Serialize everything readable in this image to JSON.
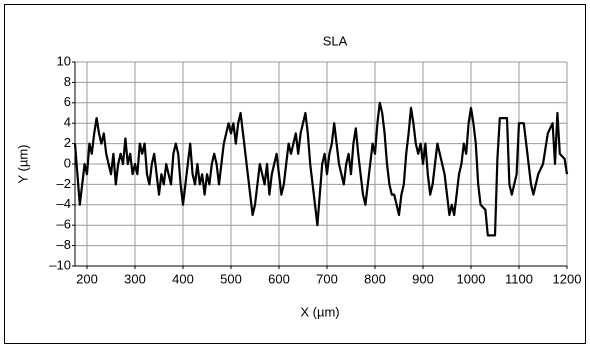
{
  "chart_data": {
    "type": "line",
    "title": "SLA",
    "x_label": "X (µm)",
    "y_label": "Y (µm)",
    "xlim": [
      175,
      1200
    ],
    "xticks": [
      200,
      300,
      400,
      500,
      600,
      700,
      800,
      900,
      1000,
      1100,
      1200
    ],
    "ylim": [
      -10,
      10
    ],
    "yticks": [
      {
        "value": -10,
        "label": "–10"
      },
      {
        "value": -8,
        "label": "–8"
      },
      {
        "value": -6,
        "label": "–6"
      },
      {
        "value": -4,
        "label": "–4"
      },
      {
        "value": -2,
        "label": "–2"
      },
      0,
      2,
      4,
      6,
      8,
      10
    ],
    "grid": true,
    "color": "#000000",
    "x": [
      175,
      180,
      185,
      190,
      195,
      200,
      205,
      210,
      215,
      220,
      225,
      230,
      235,
      240,
      245,
      250,
      255,
      260,
      265,
      270,
      275,
      280,
      285,
      290,
      295,
      300,
      305,
      310,
      315,
      320,
      325,
      330,
      335,
      340,
      345,
      350,
      355,
      360,
      365,
      370,
      375,
      380,
      385,
      390,
      395,
      400,
      405,
      410,
      415,
      420,
      425,
      430,
      435,
      440,
      445,
      450,
      455,
      460,
      465,
      470,
      475,
      480,
      485,
      490,
      495,
      500,
      505,
      510,
      515,
      520,
      525,
      530,
      535,
      540,
      545,
      550,
      555,
      560,
      565,
      570,
      575,
      580,
      585,
      590,
      595,
      600,
      605,
      610,
      615,
      620,
      625,
      630,
      635,
      640,
      645,
      650,
      655,
      660,
      665,
      670,
      675,
      680,
      685,
      690,
      695,
      700,
      705,
      710,
      715,
      720,
      725,
      730,
      735,
      740,
      745,
      750,
      755,
      760,
      765,
      770,
      775,
      780,
      785,
      790,
      795,
      800,
      805,
      810,
      815,
      820,
      825,
      830,
      835,
      840,
      845,
      850,
      855,
      860,
      865,
      870,
      875,
      880,
      885,
      890,
      895,
      900,
      905,
      910,
      915,
      920,
      925,
      930,
      935,
      940,
      945,
      950,
      955,
      960,
      965,
      970,
      975,
      980,
      985,
      990,
      995,
      1000,
      1005,
      1010,
      1015,
      1020,
      1030,
      1035,
      1050,
      1055,
      1060,
      1075,
      1080,
      1085,
      1095,
      1100,
      1110,
      1115,
      1120,
      1125,
      1130,
      1140,
      1150,
      1160,
      1170,
      1175,
      1180,
      1185,
      1195,
      1200
    ],
    "values": [
      2,
      -1,
      -4,
      -2,
      0,
      -1,
      2,
      1,
      3,
      4.5,
      3,
      2,
      3,
      1,
      0,
      -1,
      1,
      -2,
      0,
      1,
      0,
      2.5,
      0,
      1,
      -1,
      0,
      -1,
      2,
      1,
      2,
      -1,
      -2,
      0,
      1,
      -1,
      -3,
      -1,
      -2,
      0,
      -1,
      -2,
      1,
      2,
      1,
      -2,
      -4,
      -2,
      0,
      2,
      -1,
      -2,
      0,
      -2,
      -1,
      -3,
      -1,
      -2,
      0,
      1,
      0,
      -2,
      0,
      2,
      3,
      4,
      3,
      4,
      2,
      4,
      5,
      3,
      1,
      -1,
      -3,
      -5,
      -4,
      -2,
      0,
      -1,
      -2,
      0,
      -3,
      -1,
      0,
      1,
      -1,
      -3,
      -2,
      0,
      2,
      1,
      2,
      3,
      1,
      3,
      4,
      5,
      3,
      0,
      -2,
      -4,
      -6,
      -3,
      0,
      1,
      -1,
      1,
      2,
      4,
      2,
      0,
      -1,
      -2,
      0,
      1,
      -1,
      2,
      3.5,
      1,
      -1,
      -3,
      -4,
      -2,
      0,
      2,
      1,
      4,
      6,
      5,
      3,
      0,
      -2,
      -3,
      -3,
      -4,
      -5,
      -3,
      -2,
      1,
      3,
      5.5,
      4,
      2,
      1,
      2,
      0,
      2,
      -1,
      -3,
      -2,
      0,
      2,
      1,
      0,
      -1,
      -3,
      -5,
      -4,
      -5,
      -3,
      -1,
      0,
      2,
      1,
      4,
      5.5,
      4,
      2,
      -2,
      -4,
      -4.5,
      -7,
      -7,
      0.5,
      4.5,
      4.5,
      -2,
      -3,
      -1,
      4,
      4,
      2,
      0,
      -2,
      -3,
      -1,
      0,
      3,
      4,
      0,
      5,
      1,
      0.5,
      -1
    ]
  }
}
